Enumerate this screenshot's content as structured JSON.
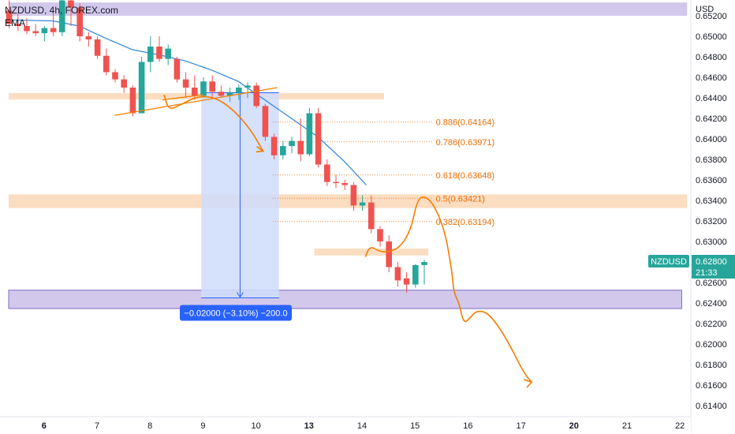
{
  "header": {
    "symbol": "NZDUSD, 4h, FOREX.com",
    "indicator": "EMA"
  },
  "currency_label": "USD",
  "price_tag": {
    "symbol": "NZDUSD",
    "price": "0.62800",
    "countdown": "21:33",
    "color": "#26a69a"
  },
  "measure_label": "−0.02000 (−3.10%) −200.0",
  "colors": {
    "up": "#26a69a",
    "down": "#ef5350",
    "ema": "#2e86de",
    "zone": "#f9cfa6",
    "purple_zone": "#c3b5e6",
    "measure_fill": "#cfdcfb",
    "measure_line": "#2962ff",
    "fib": "#ef6c00",
    "drawing": "#f57c00"
  },
  "fib_levels": [
    {
      "label": "0.886(0.64164)",
      "value": 0.64164
    },
    {
      "label": "0.786(0.63971)",
      "value": 0.63971
    },
    {
      "label": "0.618(0.63648)",
      "value": 0.63648
    },
    {
      "label": "0.5(0.63421)",
      "value": 0.63421
    },
    {
      "label": "0.382(0.63194)",
      "value": 0.63194
    }
  ],
  "chart_data": {
    "type": "candlestick",
    "ylim": [
      0.613,
      0.653
    ],
    "y_ticks": [
      "0.65200",
      "0.65000",
      "0.64800",
      "0.64600",
      "0.64400",
      "0.64200",
      "0.64000",
      "0.63800",
      "0.63600",
      "0.63400",
      "0.63200",
      "0.63000",
      "0.62800",
      "0.62600",
      "0.62400",
      "0.62200",
      "0.62000",
      "0.61800",
      "0.61600",
      "0.61400"
    ],
    "x_ticks": [
      {
        "label": "6",
        "t": 4.0,
        "bold": true
      },
      {
        "label": "7",
        "t": 10.0
      },
      {
        "label": "8",
        "t": 16.0
      },
      {
        "label": "9",
        "t": 22.0
      },
      {
        "label": "10",
        "t": 28.0
      },
      {
        "label": "13",
        "t": 34.0,
        "bold": true
      },
      {
        "label": "14",
        "t": 40.0
      },
      {
        "label": "15",
        "t": 46.0
      },
      {
        "label": "16",
        "t": 52.0
      },
      {
        "label": "17",
        "t": 58.0
      },
      {
        "label": "20",
        "t": 64.0,
        "bold": true
      },
      {
        "label": "21",
        "t": 70.0
      },
      {
        "label": "22",
        "t": 76.0
      }
    ],
    "candles": [
      {
        "o": 0.6525,
        "h": 0.6535,
        "l": 0.6508,
        "c": 0.6512
      },
      {
        "o": 0.6512,
        "h": 0.6522,
        "l": 0.6505,
        "c": 0.651
      },
      {
        "o": 0.651,
        "h": 0.6518,
        "l": 0.6502,
        "c": 0.6505
      },
      {
        "o": 0.6505,
        "h": 0.6512,
        "l": 0.65,
        "c": 0.6503
      },
      {
        "o": 0.6503,
        "h": 0.651,
        "l": 0.6495,
        "c": 0.6508
      },
      {
        "o": 0.6508,
        "h": 0.6522,
        "l": 0.65,
        "c": 0.6504
      },
      {
        "o": 0.6504,
        "h": 0.654,
        "l": 0.65,
        "c": 0.6535
      },
      {
        "o": 0.6535,
        "h": 0.654,
        "l": 0.651,
        "c": 0.6528
      },
      {
        "o": 0.6528,
        "h": 0.6532,
        "l": 0.6495,
        "c": 0.65
      },
      {
        "o": 0.65,
        "h": 0.6504,
        "l": 0.649,
        "c": 0.6497
      },
      {
        "o": 0.6497,
        "h": 0.65,
        "l": 0.6478,
        "c": 0.6481
      },
      {
        "o": 0.6481,
        "h": 0.6488,
        "l": 0.6462,
        "c": 0.6465
      },
      {
        "o": 0.6465,
        "h": 0.6468,
        "l": 0.6455,
        "c": 0.6458
      },
      {
        "o": 0.6458,
        "h": 0.6462,
        "l": 0.6445,
        "c": 0.645
      },
      {
        "o": 0.645,
        "h": 0.6452,
        "l": 0.6422,
        "c": 0.6425
      },
      {
        "o": 0.6425,
        "h": 0.648,
        "l": 0.6425,
        "c": 0.6475
      },
      {
        "o": 0.6475,
        "h": 0.65,
        "l": 0.6465,
        "c": 0.649
      },
      {
        "o": 0.649,
        "h": 0.65,
        "l": 0.6475,
        "c": 0.6478
      },
      {
        "o": 0.6478,
        "h": 0.6492,
        "l": 0.6472,
        "c": 0.6488
      },
      {
        "o": 0.6478,
        "h": 0.648,
        "l": 0.6455,
        "c": 0.6458
      },
      {
        "o": 0.6458,
        "h": 0.6465,
        "l": 0.644,
        "c": 0.645
      },
      {
        "o": 0.645,
        "h": 0.6462,
        "l": 0.6438,
        "c": 0.6442
      },
      {
        "o": 0.6442,
        "h": 0.646,
        "l": 0.644,
        "c": 0.6456
      },
      {
        "o": 0.6456,
        "h": 0.6462,
        "l": 0.644,
        "c": 0.6446
      },
      {
        "o": 0.6446,
        "h": 0.6452,
        "l": 0.644,
        "c": 0.6442
      },
      {
        "o": 0.6442,
        "h": 0.645,
        "l": 0.6436,
        "c": 0.6445
      },
      {
        "o": 0.6445,
        "h": 0.6453,
        "l": 0.6438,
        "c": 0.645
      },
      {
        "o": 0.645,
        "h": 0.6455,
        "l": 0.644,
        "c": 0.6452
      },
      {
        "o": 0.6452,
        "h": 0.6455,
        "l": 0.643,
        "c": 0.6432
      },
      {
        "o": 0.6432,
        "h": 0.6434,
        "l": 0.6398,
        "c": 0.6402
      },
      {
        "o": 0.6402,
        "h": 0.6405,
        "l": 0.638,
        "c": 0.6384
      },
      {
        "o": 0.6384,
        "h": 0.6398,
        "l": 0.638,
        "c": 0.6393
      },
      {
        "o": 0.6393,
        "h": 0.6402,
        "l": 0.6386,
        "c": 0.6398
      },
      {
        "o": 0.6398,
        "h": 0.642,
        "l": 0.6378,
        "c": 0.6385
      },
      {
        "o": 0.6385,
        "h": 0.643,
        "l": 0.6383,
        "c": 0.6425
      },
      {
        "o": 0.6425,
        "h": 0.643,
        "l": 0.6372,
        "c": 0.6375
      },
      {
        "o": 0.6375,
        "h": 0.638,
        "l": 0.6354,
        "c": 0.6358
      },
      {
        "o": 0.6358,
        "h": 0.6365,
        "l": 0.6352,
        "c": 0.6357
      },
      {
        "o": 0.6357,
        "h": 0.636,
        "l": 0.635,
        "c": 0.6355
      },
      {
        "o": 0.6355,
        "h": 0.6358,
        "l": 0.633,
        "c": 0.6335
      },
      {
        "o": 0.6335,
        "h": 0.6345,
        "l": 0.633,
        "c": 0.6338
      },
      {
        "o": 0.6338,
        "h": 0.6345,
        "l": 0.6308,
        "c": 0.6312
      },
      {
        "o": 0.6312,
        "h": 0.6315,
        "l": 0.6295,
        "c": 0.63
      },
      {
        "o": 0.63,
        "h": 0.6306,
        "l": 0.627,
        "c": 0.6275
      },
      {
        "o": 0.6275,
        "h": 0.628,
        "l": 0.6256,
        "c": 0.6262
      },
      {
        "o": 0.6264,
        "h": 0.627,
        "l": 0.625,
        "c": 0.6258
      },
      {
        "o": 0.6258,
        "h": 0.6278,
        "l": 0.6255,
        "c": 0.6277
      },
      {
        "o": 0.6277,
        "h": 0.6282,
        "l": 0.6258,
        "c": 0.628
      }
    ],
    "ema": [
      {
        "t": 0,
        "v": 0.6516
      },
      {
        "t": 5,
        "v": 0.6515
      },
      {
        "t": 8,
        "v": 0.651
      },
      {
        "t": 11,
        "v": 0.6498
      },
      {
        "t": 14,
        "v": 0.6487
      },
      {
        "t": 17,
        "v": 0.6482
      },
      {
        "t": 20,
        "v": 0.6476
      },
      {
        "t": 23,
        "v": 0.6467
      },
      {
        "t": 26,
        "v": 0.6456
      },
      {
        "t": 29,
        "v": 0.6438
      },
      {
        "t": 32,
        "v": 0.642
      },
      {
        "t": 35,
        "v": 0.6402
      },
      {
        "t": 38,
        "v": 0.6378
      },
      {
        "t": 40.5,
        "v": 0.6355
      }
    ],
    "zones": [
      {
        "name": "top-purple",
        "t0": 0,
        "t1": 76.8,
        "y0": 0.6533,
        "y1": 0.652,
        "color": "purple"
      },
      {
        "name": "upper-zone",
        "t0": 0,
        "t1": 42.5,
        "y0": 0.64447,
        "y1": 0.64384,
        "color": "orange"
      },
      {
        "name": "mid-zone",
        "t0": 0,
        "t1": 76.8,
        "y0": 0.63459,
        "y1": 0.63326,
        "color": "orange"
      },
      {
        "name": "small-zone",
        "t0": 34.6,
        "t1": 47.5,
        "y0": 0.62931,
        "y1": 0.62863,
        "color": "orange"
      },
      {
        "name": "purple-support",
        "t0": 0,
        "t1": 76.2,
        "y0": 0.62525,
        "y1": 0.62346,
        "color": "purple"
      }
    ],
    "measure": {
      "t0": 21.8,
      "t1": 30.6,
      "from": 0.6445,
      "to": 0.6245
    },
    "fib_t0": 29.9,
    "fib_t1": 48.0,
    "trendlines": [
      {
        "t0": 12.0,
        "v0": 0.6423,
        "t1": 30.4,
        "v1": 0.645
      },
      {
        "t0": 17.4,
        "v0": 0.6438,
        "t1": 22.0,
        "v1": 0.6443
      }
    ],
    "arrow_path": [
      {
        "t": 17.6,
        "v": 0.6443
      },
      {
        "t": 18.1,
        "v": 0.6428
      },
      {
        "t": 19.4,
        "v": 0.6433
      },
      {
        "t": 21.5,
        "v": 0.6442
      },
      {
        "t": 23.5,
        "v": 0.644
      },
      {
        "t": 25.5,
        "v": 0.6428
      },
      {
        "t": 27.5,
        "v": 0.6408
      },
      {
        "t": 28.8,
        "v": 0.6388
      }
    ],
    "projection": [
      {
        "t": 40.4,
        "v": 0.6285
      },
      {
        "t": 40.9,
        "v": 0.6296
      },
      {
        "t": 42.2,
        "v": 0.6289
      },
      {
        "t": 44.1,
        "v": 0.6292
      },
      {
        "t": 45.5,
        "v": 0.631
      },
      {
        "t": 46.3,
        "v": 0.6342
      },
      {
        "t": 47.2,
        "v": 0.6344
      },
      {
        "t": 48.2,
        "v": 0.6335
      },
      {
        "t": 49.4,
        "v": 0.631
      },
      {
        "t": 50.2,
        "v": 0.627
      },
      {
        "t": 50.4,
        "v": 0.625
      },
      {
        "t": 51.0,
        "v": 0.624
      },
      {
        "t": 51.5,
        "v": 0.622
      },
      {
        "t": 52.2,
        "v": 0.6225
      },
      {
        "t": 53.0,
        "v": 0.6233
      },
      {
        "t": 54.4,
        "v": 0.623
      },
      {
        "t": 56.4,
        "v": 0.6205
      },
      {
        "t": 58.3,
        "v": 0.6172
      },
      {
        "t": 59.2,
        "v": 0.6163
      }
    ]
  }
}
